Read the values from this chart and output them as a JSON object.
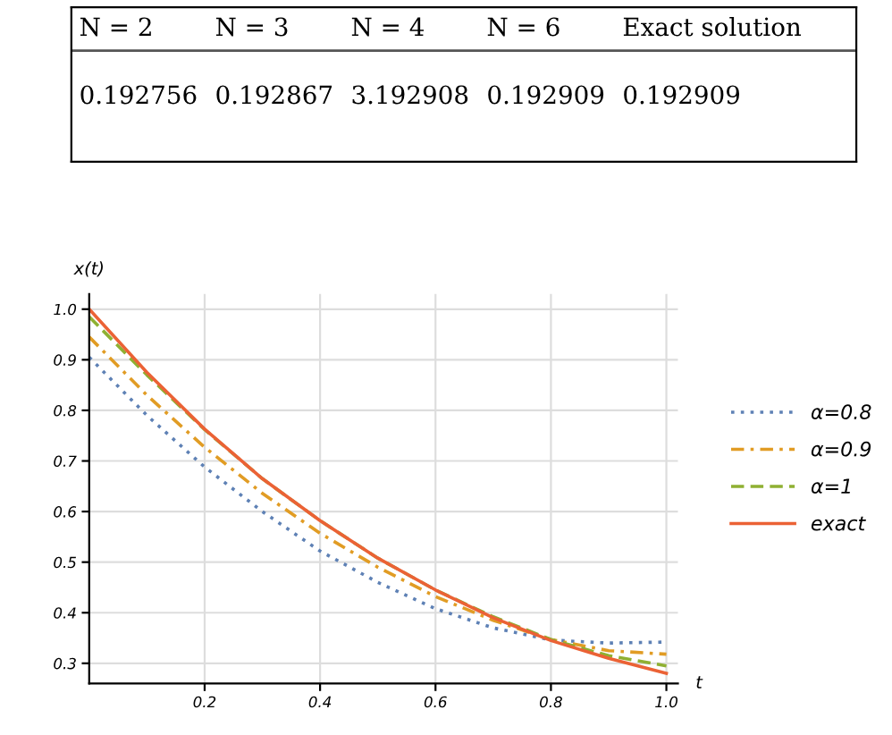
{
  "chart_data": {
    "type": "line",
    "xlabel": "t",
    "ylabel": "x(t)",
    "annotations": [
      "N = 2",
      "N = 3",
      "N = 4",
      "N = 6",
      "Exact solution",
      "0.192756",
      "0.192867",
      "3.192908",
      "0.192909",
      "0.192909"
    ],
    "x": [
      0,
      0.1,
      0.2,
      0.3,
      0.4,
      0.5,
      0.6,
      0.7,
      0.8,
      0.9,
      1.0
    ],
    "series": [
      {
        "name": "α=0.8",
        "color": "#5e81b5",
        "line_style": "dotted",
        "values": [
          0.905,
          0.79,
          0.688,
          0.6,
          0.522,
          0.46,
          0.408,
          0.37,
          0.346,
          0.34,
          0.342
        ]
      },
      {
        "name": "α=0.9",
        "color": "#e19c24",
        "line_style": "dashdot",
        "values": [
          0.945,
          0.83,
          0.727,
          0.636,
          0.557,
          0.49,
          0.432,
          0.385,
          0.347,
          0.325,
          0.318
        ]
      },
      {
        "name": "α=1",
        "color": "#8fb032",
        "line_style": "dashed",
        "values": [
          0.985,
          0.87,
          0.762,
          0.665,
          0.582,
          0.508,
          0.445,
          0.392,
          0.347,
          0.315,
          0.295
        ]
      },
      {
        "name": "exact",
        "color": "#eb6235",
        "line_style": "solid",
        "values": [
          1.0,
          0.875,
          0.763,
          0.665,
          0.582,
          0.508,
          0.445,
          0.39,
          0.345,
          0.31,
          0.28
        ]
      }
    ],
    "xlim": [
      0,
      1.02
    ],
    "ylim": [
      0.26,
      1.03
    ],
    "xticks": [
      0.2,
      0.4,
      0.6,
      0.8,
      {
        "value": 1,
        "label": "1.0"
      }
    ],
    "yticks": [
      0.3,
      0.4,
      0.5,
      0.6,
      0.7,
      0.8,
      0.9,
      {
        "value": 1,
        "label": "1.0"
      }
    ],
    "grid": true,
    "legend": "right"
  }
}
